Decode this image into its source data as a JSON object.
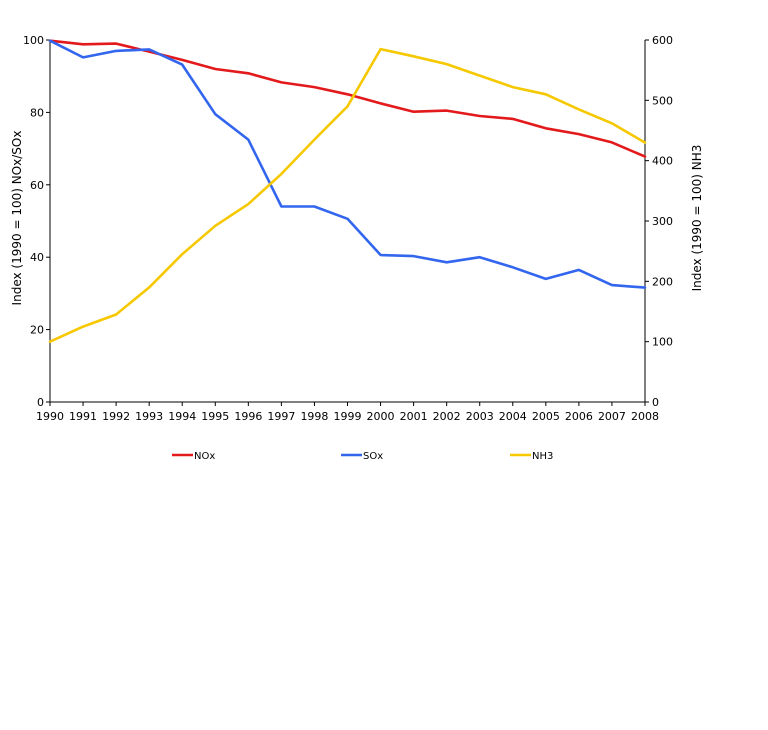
{
  "chart_data": {
    "type": "line",
    "title": "",
    "xlabel": "",
    "ylabel_left": "Index (1990 = 100) NOx/SOx",
    "ylabel_right": "Index (1990 = 100) NH3",
    "x": [
      "1990",
      "1991",
      "1992",
      "1993",
      "1994",
      "1995",
      "1996",
      "1997",
      "1998",
      "1999",
      "2000",
      "2001",
      "2002",
      "2003",
      "2004",
      "2005",
      "2006",
      "2007",
      "2008"
    ],
    "ylim_left": [
      0,
      100
    ],
    "yticks_left": [
      "0",
      "20",
      "40",
      "60",
      "80",
      "100"
    ],
    "ylim_right": [
      0,
      600
    ],
    "yticks_right": [
      "0",
      "100",
      "200",
      "300",
      "400",
      "500",
      "600"
    ],
    "series": [
      {
        "name": "NOx",
        "axis": "left",
        "color": "#e31a1c",
        "values": [
          99.8,
          98.8,
          99.0,
          96.8,
          94.5,
          92.0,
          90.8,
          88.3,
          87.0,
          85.0,
          82.5,
          80.2,
          80.5,
          79.0,
          78.2,
          75.6,
          74.0,
          71.7,
          67.8
        ]
      },
      {
        "name": "SOx",
        "axis": "left",
        "color": "#3366ee",
        "values": [
          99.8,
          95.2,
          97.0,
          97.4,
          93.2,
          79.5,
          72.5,
          54.0,
          54.0,
          50.6,
          40.6,
          40.3,
          38.6,
          40.0,
          37.2,
          34.0,
          36.5,
          32.3,
          31.6
        ]
      },
      {
        "name": "NH3",
        "axis": "right",
        "color": "#f5c800",
        "values": [
          100,
          125,
          145,
          190,
          245,
          292,
          328,
          378,
          435,
          490,
          585,
          573,
          560,
          541,
          522,
          510,
          485,
          462,
          430
        ]
      }
    ],
    "legend": {
      "position": "bottom",
      "entries": [
        "NOx",
        "SOx",
        "NH3"
      ]
    },
    "grid": false
  }
}
